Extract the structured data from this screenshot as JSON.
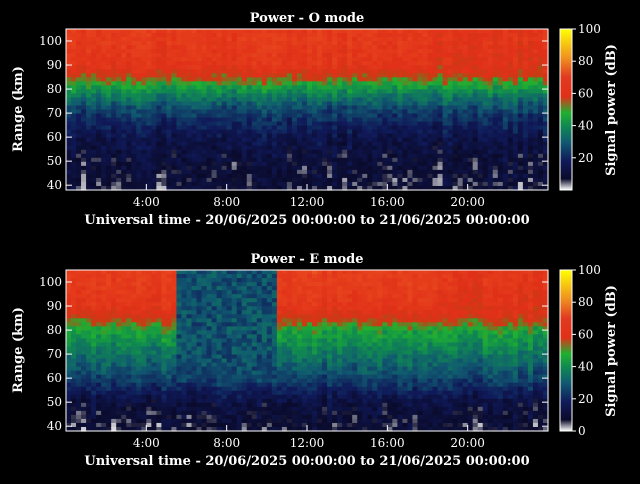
{
  "chart_data": [
    {
      "type": "heatmap",
      "title": "Power - O mode",
      "xlabel": "Universal time - 20/06/2025 00:00:00 to 21/06/2025 00:00:00",
      "ylabel": "Range (km)",
      "x_range_hours": [
        0,
        24
      ],
      "xticks": [
        4,
        8,
        12,
        16,
        20
      ],
      "xtick_labels": [
        "4:00",
        "8:00",
        "12:00",
        "16:00",
        "20:00"
      ],
      "ylim": [
        38,
        105
      ],
      "yticks": [
        40,
        50,
        60,
        70,
        80,
        90,
        100
      ],
      "colorbar": {
        "label": "Signal power (dB)",
        "range": [
          0,
          100
        ],
        "ticks": [
          20,
          40,
          60,
          80,
          100
        ]
      },
      "power_profile": [
        {
          "range_km": 100,
          "power_db": 68
        },
        {
          "range_km": 90,
          "power_db": 65
        },
        {
          "range_km": 85,
          "power_db": 55
        },
        {
          "range_km": 80,
          "power_db": 42
        },
        {
          "range_km": 75,
          "power_db": 32
        },
        {
          "range_km": 70,
          "power_db": 24
        },
        {
          "range_km": 60,
          "power_db": 14
        },
        {
          "range_km": 50,
          "power_db": 10
        },
        {
          "range_km": 40,
          "power_db": 8
        }
      ]
    },
    {
      "type": "heatmap",
      "title": "Power - E mode",
      "xlabel": "Universal time - 20/06/2025 00:00:00 to 21/06/2025 00:00:00",
      "ylabel": "Range (km)",
      "x_range_hours": [
        0,
        24
      ],
      "xticks": [
        4,
        8,
        12,
        16,
        20
      ],
      "xtick_labels": [
        "4:00",
        "8:00",
        "12:00",
        "16:00",
        "20:00"
      ],
      "ylim": [
        38,
        105
      ],
      "yticks": [
        40,
        50,
        60,
        70,
        80,
        90,
        100
      ],
      "colorbar": {
        "label": "Signal power (dB)",
        "range": [
          0,
          100
        ],
        "ticks": [
          0,
          20,
          40,
          60,
          80,
          100
        ]
      },
      "power_profile": [
        {
          "range_km": 100,
          "power_db": 70
        },
        {
          "range_km": 90,
          "power_db": 66
        },
        {
          "range_km": 85,
          "power_db": 58
        },
        {
          "range_km": 80,
          "power_db": 46
        },
        {
          "range_km": 70,
          "power_db": 36
        },
        {
          "range_km": 60,
          "power_db": 26
        },
        {
          "range_km": 50,
          "power_db": 12
        },
        {
          "range_km": 40,
          "power_db": 8
        }
      ],
      "low_power_interval_hours": [
        5.5,
        10.5
      ]
    }
  ]
}
